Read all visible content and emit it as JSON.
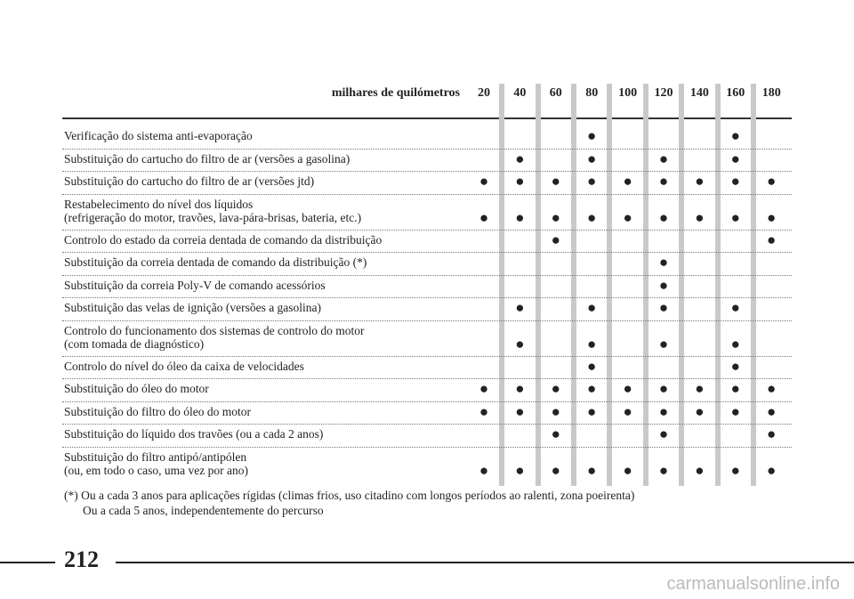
{
  "table": {
    "header": {
      "title": "milhares de quilómetros",
      "columns": [
        "20",
        "40",
        "60",
        "80",
        "100",
        "120",
        "140",
        "160",
        "180"
      ]
    },
    "rows": [
      {
        "lines": [
          "Verificação do sistema anti-evaporação"
        ],
        "cells": [
          null,
          null,
          null,
          "●",
          null,
          null,
          null,
          "●",
          null
        ]
      },
      {
        "lines": [
          "Substituição do cartucho do filtro de ar (versões a gasolina)"
        ],
        "cells": [
          null,
          "●",
          null,
          "●",
          null,
          "●",
          null,
          "●",
          null
        ]
      },
      {
        "lines": [
          "Substituição do cartucho do filtro de ar (versões jtd)"
        ],
        "cells": [
          "●",
          "●",
          "●",
          "●",
          "●",
          "●",
          "●",
          "●",
          "●"
        ]
      },
      {
        "lines": [
          "Restabelecimento do nível dos líquidos",
          "(refrigeração do motor, travões, lava-pára-brisas, bateria, etc.)"
        ],
        "cells": [
          "●",
          "●",
          "●",
          "●",
          "●",
          "●",
          "●",
          "●",
          "●"
        ]
      },
      {
        "lines": [
          "Controlo do estado da correia dentada de comando da distribuição"
        ],
        "cells": [
          null,
          null,
          "●",
          null,
          null,
          null,
          null,
          null,
          "●"
        ]
      },
      {
        "lines": [
          "Substituição da correia dentada de comando da distribuição (*)"
        ],
        "cells": [
          null,
          null,
          null,
          null,
          null,
          "●",
          null,
          null,
          null
        ]
      },
      {
        "lines": [
          "Substituição da correia Poly-V de comando acessórios"
        ],
        "cells": [
          null,
          null,
          null,
          null,
          null,
          "●",
          null,
          null,
          null
        ]
      },
      {
        "lines": [
          "Substituição das velas de ignição (versões a gasolina)"
        ],
        "cells": [
          null,
          "●",
          null,
          "●",
          null,
          "●",
          null,
          "●",
          null
        ]
      },
      {
        "lines": [
          "Controlo do funcionamento dos sistemas de controlo do motor",
          "(com tomada de diagnóstico)"
        ],
        "cells": [
          null,
          "●",
          null,
          "●",
          null,
          "●",
          null,
          "●",
          null
        ]
      },
      {
        "lines": [
          "Controlo do nível do óleo da caixa de velocidades"
        ],
        "cells": [
          null,
          null,
          null,
          "●",
          null,
          null,
          null,
          "●",
          null
        ]
      },
      {
        "lines": [
          "Substituição do óleo do motor"
        ],
        "cells": [
          "●",
          "●",
          "●",
          "●",
          "●",
          "●",
          "●",
          "●",
          "●"
        ]
      },
      {
        "lines": [
          "Substituição do filtro do óleo do motor"
        ],
        "cells": [
          "●",
          "●",
          "●",
          "●",
          "●",
          "●",
          "●",
          "●",
          "●"
        ]
      },
      {
        "lines": [
          "Substituição do líquido dos travões (ou a cada 2 anos)"
        ],
        "cells": [
          null,
          null,
          "●",
          null,
          null,
          "●",
          null,
          null,
          "●"
        ]
      },
      {
        "lines": [
          "Substituição do filtro antipó/antipólen",
          "(ou, em todo o caso, uma vez por ano)"
        ],
        "cells": [
          "●",
          "●",
          "●",
          "●",
          "●",
          "●",
          "●",
          "●",
          "●"
        ]
      }
    ]
  },
  "footnote": [
    "(*) Ou a cada 3 anos para aplicações rígidas (climas frios, uso citadino com longos períodos ao ralenti, zona poeirenta)",
    "Ou a cada 5 anos, independentemente do percurso"
  ],
  "page_number": "212",
  "watermark": "carmanualsonline.info"
}
